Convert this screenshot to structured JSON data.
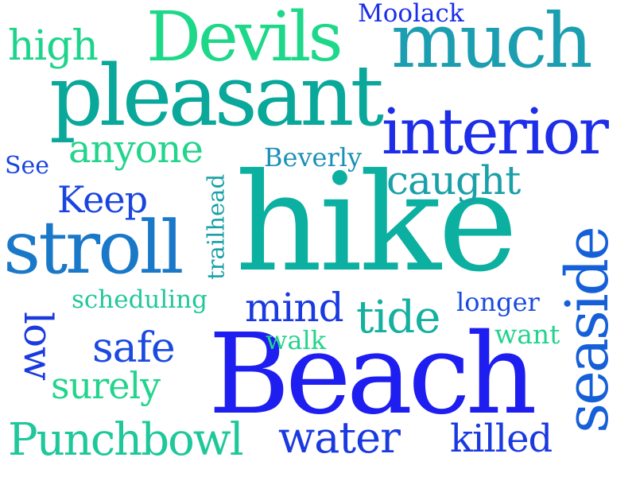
{
  "word_cloud": {
    "words": [
      {
        "key": "hike",
        "text": "hike",
        "color": "#0bb0a0"
      },
      {
        "key": "beach",
        "text": "Beach",
        "color": "#1e1ef0"
      },
      {
        "key": "pleasant",
        "text": "pleasant",
        "color": "#0aa89a"
      },
      {
        "key": "interior",
        "text": "interior",
        "color": "#1e2ee8"
      },
      {
        "key": "stroll",
        "text": "stroll",
        "color": "#1a78c8"
      },
      {
        "key": "much",
        "text": "much",
        "color": "#1a9eb0"
      },
      {
        "key": "devils",
        "text": "Devils",
        "color": "#1ed88a"
      },
      {
        "key": "seaside",
        "text": "seaside",
        "color": "#1560d8"
      },
      {
        "key": "punchbowl",
        "text": "Punchbowl",
        "color": "#1ec89a"
      },
      {
        "key": "water",
        "text": "water",
        "color": "#1a3ae0"
      },
      {
        "key": "anyone",
        "text": "anyone",
        "color": "#22d48c"
      },
      {
        "key": "high",
        "text": "high",
        "color": "#1ed48c"
      },
      {
        "key": "caught",
        "text": "caught",
        "color": "#1aa0a8"
      },
      {
        "key": "tide",
        "text": "tide",
        "color": "#14b0a0"
      },
      {
        "key": "safe",
        "text": "safe",
        "color": "#1a4ae0"
      },
      {
        "key": "mind",
        "text": "mind",
        "color": "#1a3ae0"
      },
      {
        "key": "keep",
        "text": "Keep",
        "color": "#1a44e0"
      },
      {
        "key": "killed",
        "text": "killed",
        "color": "#1a3ae0"
      },
      {
        "key": "surely",
        "text": "surely",
        "color": "#22d48c"
      },
      {
        "key": "low",
        "text": "low",
        "color": "#1a3ae0"
      },
      {
        "key": "trailhead",
        "text": "trailhead",
        "color": "#1aa0a8"
      },
      {
        "key": "beverly",
        "text": "Beverly",
        "color": "#1a90b8"
      },
      {
        "key": "scheduling",
        "text": "scheduling",
        "color": "#22c89a"
      },
      {
        "key": "longer",
        "text": "longer",
        "color": "#1a4ae0"
      },
      {
        "key": "walk",
        "text": "walk",
        "color": "#22d48c"
      },
      {
        "key": "want",
        "text": "want",
        "color": "#22d48c"
      },
      {
        "key": "moolack",
        "text": "Moolack",
        "color": "#1a2ee8"
      },
      {
        "key": "see",
        "text": "See",
        "color": "#1a44e0"
      }
    ]
  }
}
